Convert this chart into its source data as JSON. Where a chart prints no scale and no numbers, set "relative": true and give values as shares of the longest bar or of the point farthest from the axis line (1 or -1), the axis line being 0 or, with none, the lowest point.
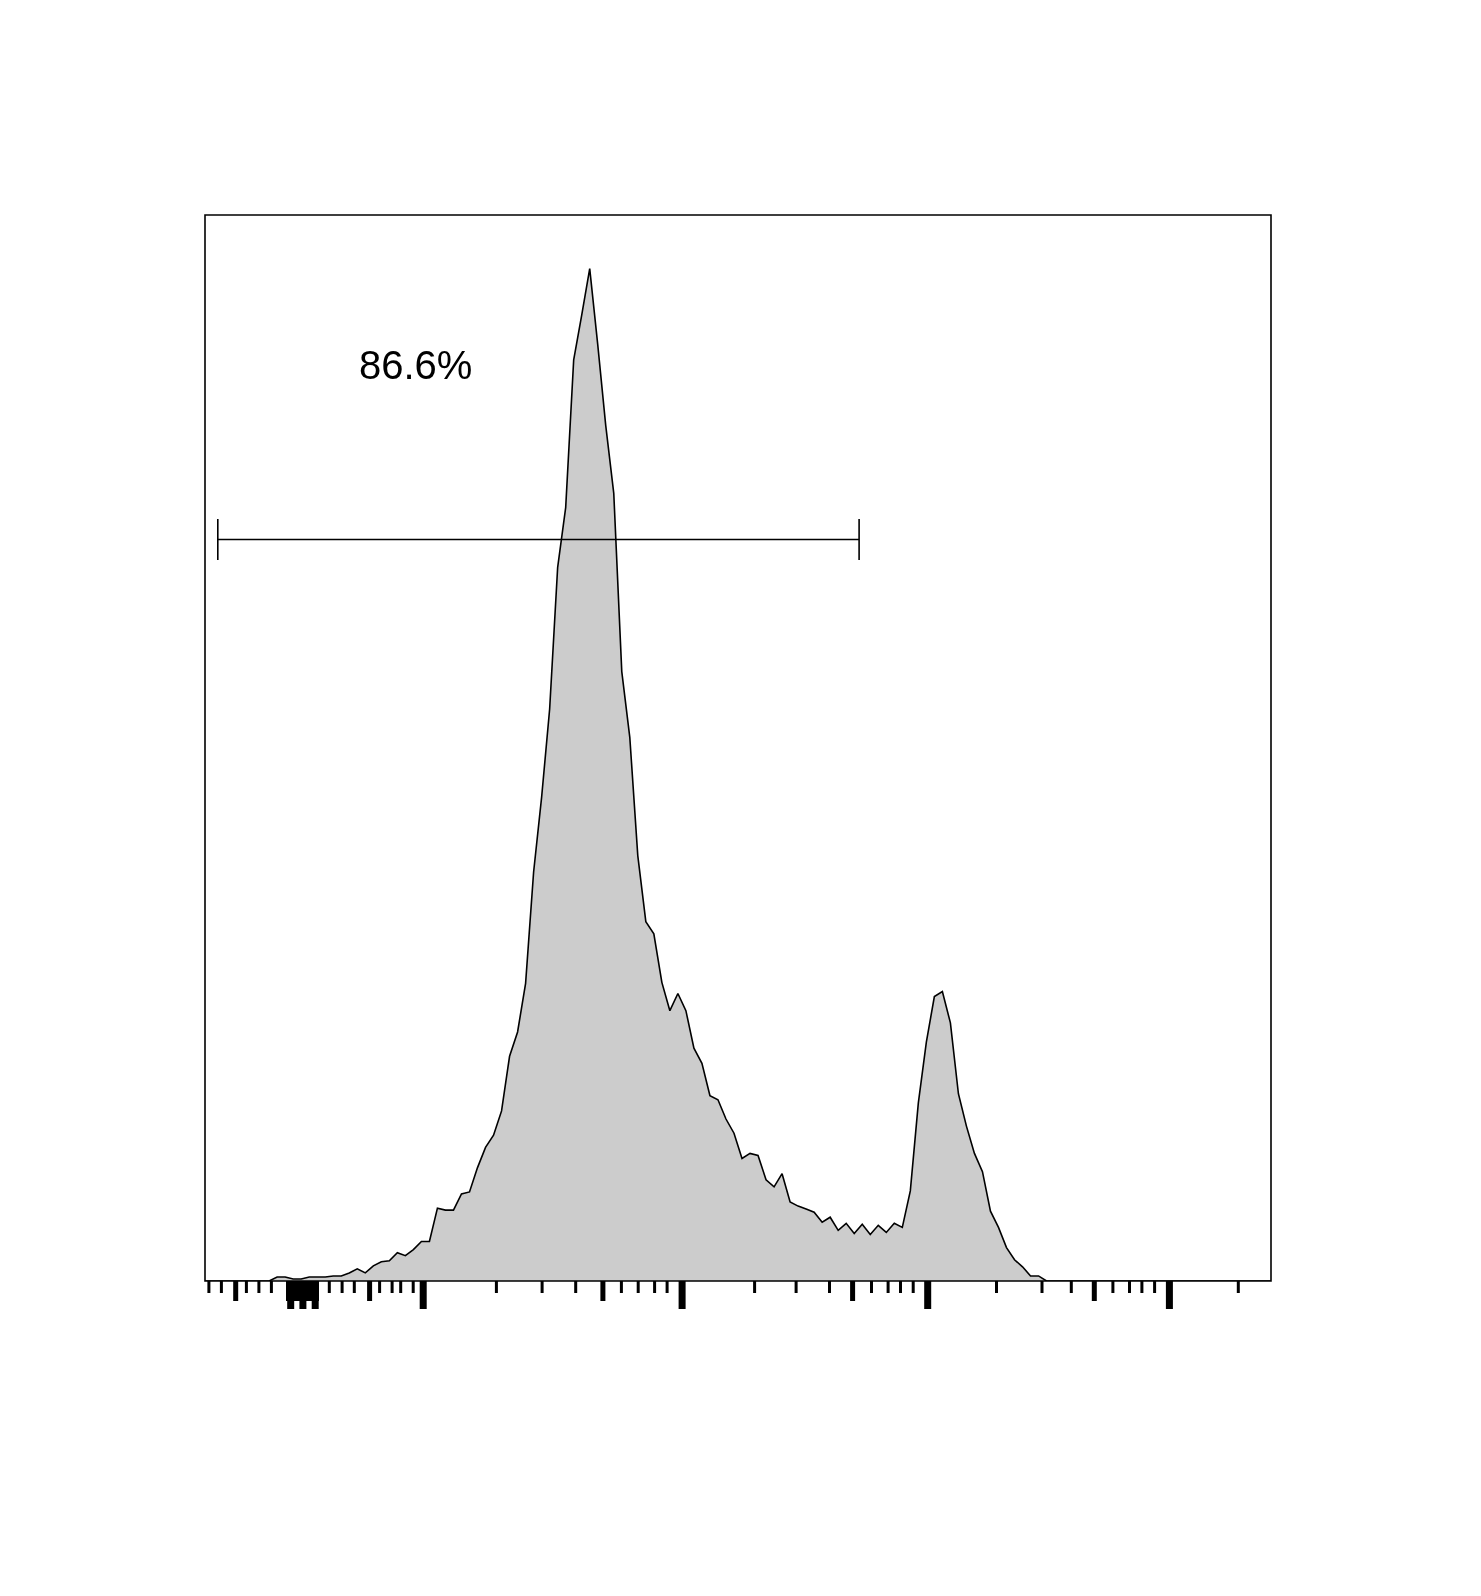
{
  "chart_data": {
    "type": "area",
    "relative": true,
    "categories": [
      null,
      null,
      null,
      null,
      null,
      null,
      null,
      null,
      null,
      null,
      null,
      null,
      null,
      null,
      null,
      null,
      null,
      null,
      null,
      null,
      null,
      null,
      null,
      null,
      null,
      null,
      null,
      null,
      null,
      null,
      null,
      null,
      null,
      null,
      null,
      null,
      null,
      null,
      null,
      null,
      null,
      null,
      null,
      null,
      null,
      null,
      null,
      null,
      null,
      null,
      null,
      null,
      null,
      null,
      null,
      null,
      null,
      null,
      null,
      null,
      null,
      null,
      null,
      null,
      null,
      null,
      null,
      null,
      null,
      null,
      null,
      null,
      null,
      null,
      null,
      null,
      null,
      null,
      null,
      null,
      null,
      null,
      null,
      null,
      null,
      null,
      null,
      null,
      null,
      null,
      null,
      null,
      null,
      null,
      null,
      null,
      null,
      null,
      null,
      null,
      null,
      null,
      null,
      null,
      null,
      null,
      null,
      null,
      null,
      null,
      null,
      null,
      null,
      null,
      null,
      null,
      null,
      null,
      null,
      null,
      null,
      null,
      null,
      null,
      null,
      null,
      null,
      null,
      null,
      null,
      null,
      null,
      null,
      null
    ],
    "series": [
      {
        "color": "#cccccc",
        "values": [
          0,
          0,
          0,
          0,
          0,
          0,
          0,
          0,
          0,
          0.004,
          0.004,
          0.002,
          0.002,
          0.004,
          0.004,
          0.004,
          0.005,
          0.005,
          0.008,
          0.012,
          0.008,
          0.015,
          0.019,
          0.02,
          0.028,
          0.025,
          0.031,
          0.039,
          0.039,
          0.072,
          0.07,
          0.07,
          0.086,
          0.088,
          0.112,
          0.132,
          0.144,
          0.168,
          0.222,
          0.246,
          0.294,
          0.404,
          0.478,
          0.565,
          0.705,
          0.764,
          0.91,
          0.954,
          1,
          0.925,
          0.845,
          0.778,
          0.602,
          0.537,
          0.42,
          0.355,
          0.343,
          0.295,
          0.267,
          0.284,
          0.267,
          0.23,
          0.215,
          0.183,
          0.179,
          0.16,
          0.146,
          0.121,
          0.126,
          0.124,
          0.1,
          0.093,
          0.106,
          0.078,
          0.074,
          0.071,
          0.068,
          0.058,
          0.063,
          0.05,
          0.057,
          0.047,
          0.056,
          0.046,
          0.055,
          0.048,
          0.057,
          0.053,
          0.089,
          0.176,
          0.236,
          0.281,
          0.286,
          0.255,
          0.185,
          0.153,
          0.126,
          0.108,
          0.069,
          0.053,
          0.033,
          0.021,
          0.014,
          0.005,
          0.005,
          0,
          0,
          0,
          0,
          0,
          0,
          0,
          0,
          0,
          0,
          0,
          0,
          0,
          0,
          0,
          0,
          0,
          0,
          0,
          0,
          0,
          0,
          0,
          0,
          0,
          0,
          0,
          0,
          0
        ]
      }
    ],
    "annotations": [
      "86.6%"
    ]
  }
}
